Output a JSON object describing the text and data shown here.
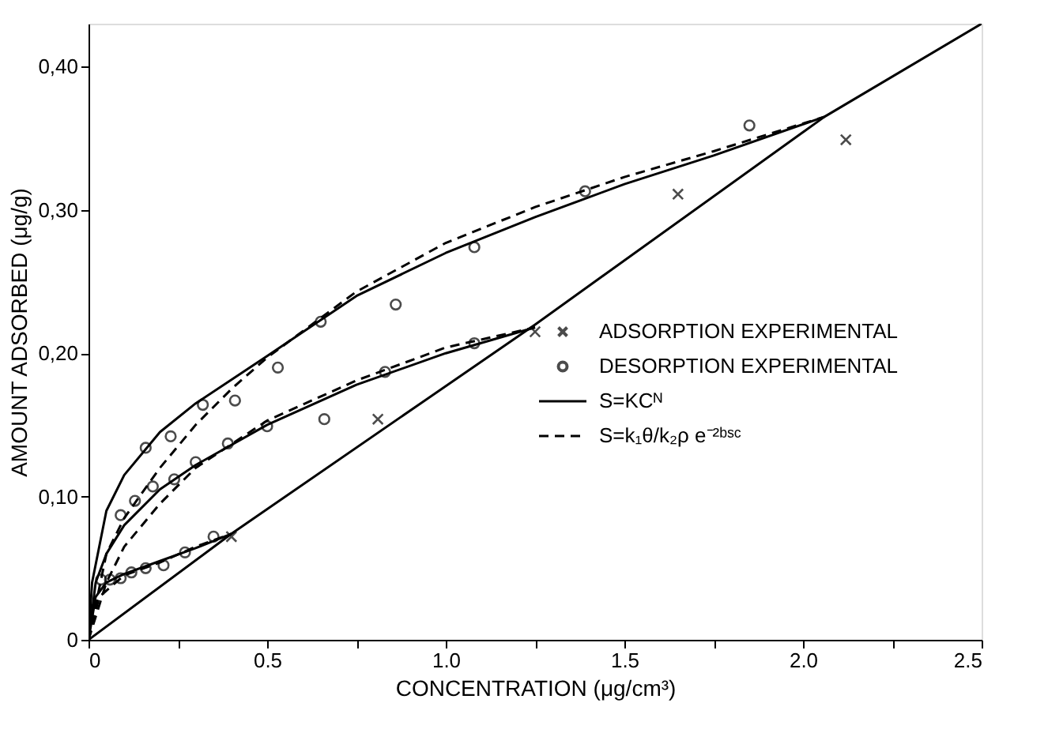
{
  "chart_data": {
    "type": "scatter",
    "xlabel": "CONCENTRATION (μg/cm³)",
    "ylabel": "AMOUNT ADSORBED (μg/g)",
    "xlim": [
      0,
      2.5
    ],
    "ylim": [
      0,
      0.43
    ],
    "xticks": [
      0,
      {
        "value": 0.25,
        "label": null
      },
      {
        "value": 0.5,
        "label": "0.5"
      },
      {
        "value": 0.75,
        "label": null
      },
      {
        "value": 1.0,
        "label": "1.0"
      },
      {
        "value": 1.25,
        "label": null
      },
      {
        "value": 1.5,
        "label": "1.5"
      },
      {
        "value": 1.75,
        "label": null
      },
      {
        "value": 2.0,
        "label": "2.0"
      },
      {
        "value": 2.25,
        "label": null
      },
      {
        "value": 2.5,
        "label": "2.5"
      }
    ],
    "yticks": [
      0,
      {
        "value": 0.1,
        "label": "0,10"
      },
      {
        "value": 0.2,
        "label": "0,20"
      },
      {
        "value": 0.3,
        "label": "0,30"
      },
      {
        "value": 0.4,
        "label": "0,40"
      }
    ],
    "grid": false,
    "legend": "right",
    "series": [
      {
        "name": "ADSORPTION EXPERIMENTAL",
        "marker": "cross",
        "color": "#000000",
        "x": [
          0.4,
          0.81,
          1.25,
          1.65,
          2.12
        ],
        "values": [
          0.072,
          0.154,
          0.215,
          0.311,
          0.349
        ]
      },
      {
        "name": "DESORPTION EXPERIMENTAL",
        "marker": "circle",
        "color": "#000000",
        "x": [
          0.035,
          0.06,
          0.09,
          0.12,
          0.16,
          0.21,
          0.27,
          0.35,
          0.09,
          0.13,
          0.18,
          0.24,
          0.3,
          0.39,
          0.5,
          0.66,
          0.83,
          1.08,
          0.16,
          0.23,
          0.32,
          0.41,
          0.53,
          0.65,
          0.86,
          1.08,
          1.39,
          1.85
        ],
        "values": [
          0.042,
          0.042,
          0.043,
          0.047,
          0.05,
          0.052,
          0.061,
          0.072,
          0.087,
          0.097,
          0.107,
          0.112,
          0.124,
          0.137,
          0.149,
          0.154,
          0.187,
          0.207,
          0.134,
          0.142,
          0.164,
          0.167,
          0.19,
          0.222,
          0.234,
          0.274,
          0.313,
          0.359
        ]
      },
      {
        "name": "S=KCᴺ",
        "type": "line",
        "line_style": "solid",
        "color": "#000000",
        "x": [
          0,
          0.4,
          1.25,
          2.06,
          2.5
        ],
        "values": [
          0,
          0.074,
          0.22,
          0.365,
          0.43
        ]
      },
      {
        "type": "line",
        "line_style": "solid",
        "color": "#000000",
        "x": [
          0,
          0.01,
          0.05,
          0.1,
          0.2,
          0.3,
          0.5,
          0.75,
          1.0,
          1.25,
          1.5,
          1.75,
          2.06
        ],
        "values": [
          0,
          0.04,
          0.09,
          0.115,
          0.145,
          0.165,
          0.198,
          0.24,
          0.27,
          0.295,
          0.318,
          0.338,
          0.365
        ]
      },
      {
        "type": "line",
        "line_style": "solid",
        "color": "#000000",
        "x": [
          0,
          0.02,
          0.05,
          0.1,
          0.2,
          0.3,
          0.5,
          0.75,
          1.0,
          1.25
        ],
        "values": [
          0,
          0.04,
          0.06,
          0.08,
          0.105,
          0.122,
          0.15,
          0.178,
          0.2,
          0.218
        ]
      },
      {
        "type": "line",
        "line_style": "solid",
        "color": "#000000",
        "x": [
          0,
          0.02,
          0.05,
          0.1,
          0.2,
          0.3,
          0.4
        ],
        "values": [
          0,
          0.03,
          0.04,
          0.046,
          0.055,
          0.064,
          0.074
        ]
      },
      {
        "name": "S=k₁θ/k₂ρ e⁻²ᵇˢᶜ",
        "type": "line",
        "line_style": "dashed",
        "color": "#000000",
        "x": [
          0,
          0.05,
          0.1,
          0.2,
          0.3,
          0.4,
          0.5,
          0.75,
          1.0,
          1.25,
          1.5,
          1.75,
          2.06
        ],
        "values": [
          0,
          0.06,
          0.085,
          0.12,
          0.15,
          0.175,
          0.197,
          0.243,
          0.277,
          0.302,
          0.323,
          0.341,
          0.365
        ]
      },
      {
        "type": "line",
        "line_style": "dashed",
        "color": "#000000",
        "x": [
          0,
          0.05,
          0.1,
          0.2,
          0.3,
          0.5,
          0.75,
          1.0,
          1.25
        ],
        "values": [
          0,
          0.04,
          0.065,
          0.095,
          0.12,
          0.153,
          0.181,
          0.204,
          0.218
        ]
      },
      {
        "type": "line",
        "line_style": "dashed",
        "color": "#000000",
        "x": [
          0,
          0.03,
          0.1,
          0.2,
          0.3,
          0.4
        ],
        "values": [
          0,
          0.03,
          0.045,
          0.054,
          0.065,
          0.074
        ]
      }
    ]
  }
}
